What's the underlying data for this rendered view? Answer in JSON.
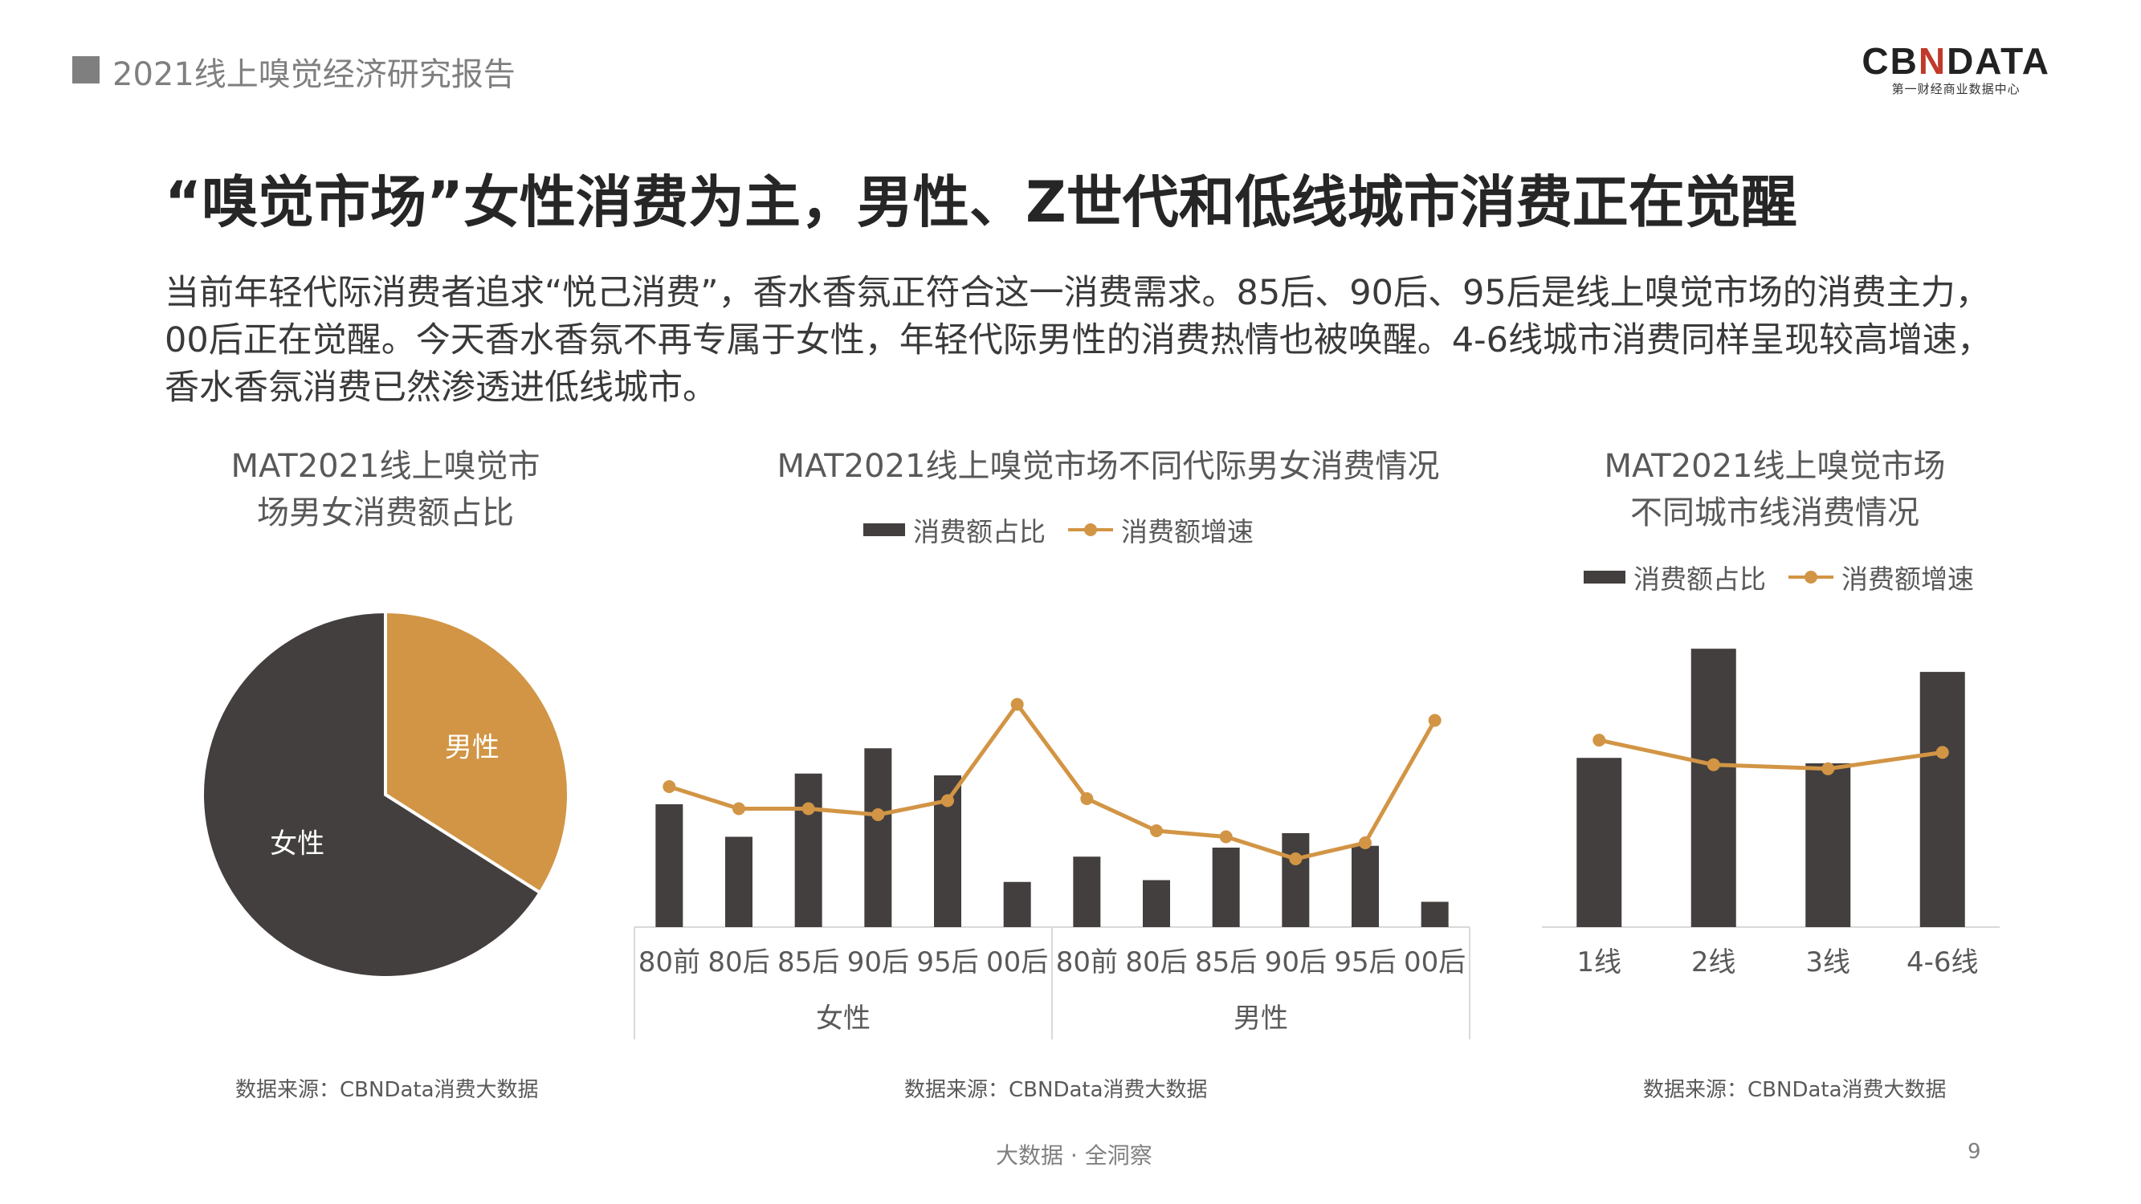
{
  "header": {
    "report_title": "2021线上嗅觉经济研究报告",
    "logo_text": "CBNDATA",
    "logo_sub": "第一财经商业数据中心"
  },
  "slide": {
    "title": "“嗅觉市场”女性消费为主，男性、Z世代和低线城市消费正在觉醒",
    "description": "当前年轻代际消费者追求“悦己消费”，香水香氛正符合这一消费需求。85后、90后、95后是线上嗅觉市场的消费主力，00后正在觉醒。今天香水香氛不再专属于女性，年轻代际男性的消费热情也被唤醒。4-6线城市消费同样呈现较高增速，香水香氛消费已然渗透进低线城市。"
  },
  "colors": {
    "dark": "#433f3e",
    "accent": "#d29545",
    "axis": "#d9d9d9"
  },
  "legend": {
    "bar": "消费额占比",
    "line": "消费额增速"
  },
  "sources": {
    "left": "数据来源：CBNData消费大数据",
    "middle": "数据来源：CBNData消费大数据",
    "right": "数据来源：CBNData消费大数据"
  },
  "footer": {
    "tagline": "大数据 · 全洞察",
    "page_number": "9"
  },
  "chart_data": [
    {
      "type": "pie",
      "title_lines": [
        "MAT2021线上嗅觉市",
        "场男女消费额占比"
      ],
      "labels": [
        "女性",
        "男性"
      ],
      "values": [
        66,
        34
      ],
      "colors": [
        "#433f3e",
        "#d29545"
      ]
    },
    {
      "type": "bar",
      "title": "MAT2021线上嗅觉市场不同代际男女消费情况",
      "categories": [
        "80前",
        "80后",
        "85后",
        "90后",
        "95后",
        "00后",
        "80前",
        "80后",
        "85后",
        "90后",
        "95后",
        "00后"
      ],
      "groups": [
        {
          "label": "女性"
        },
        {
          "label": "男性"
        }
      ],
      "series": [
        {
          "name": "消费额占比",
          "kind": "bar",
          "values": [
            68,
            50,
            85,
            99,
            84,
            25,
            39,
            26,
            44,
            52,
            45,
            14
          ]
        },
        {
          "name": "消费额增速",
          "kind": "line",
          "values": [
            70,
            59,
            59,
            56,
            63,
            111,
            64,
            48,
            45,
            34,
            42,
            103
          ]
        }
      ]
    },
    {
      "type": "bar",
      "title_lines": [
        "MAT2021线上嗅觉市场",
        "不同城市线消费情况"
      ],
      "categories": [
        "1线",
        "2线",
        "3线",
        "4-6线"
      ],
      "series": [
        {
          "name": "消费额占比",
          "kind": "bar",
          "values": [
            124,
            204,
            120,
            187
          ]
        },
        {
          "name": "消费额增速",
          "kind": "line",
          "values": [
            137,
            119,
            116,
            128
          ]
        }
      ]
    }
  ]
}
